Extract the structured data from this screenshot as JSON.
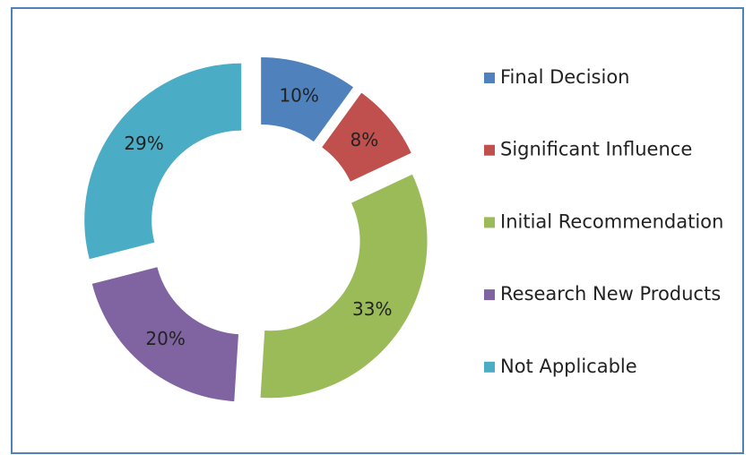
{
  "chart_data": {
    "type": "donut",
    "categories": [
      "Final Decision",
      "Significant Influence",
      "Initial Recommendation",
      "Research New Products",
      "Not Applicable"
    ],
    "values": [
      10,
      8,
      33,
      20,
      29
    ],
    "value_labels": [
      "10%",
      "8%",
      "33%",
      "20%",
      "29%"
    ],
    "colors": [
      "#4f81bd",
      "#c0504d",
      "#9bbb59",
      "#8064a2",
      "#4bacc6"
    ],
    "legend": "right"
  }
}
